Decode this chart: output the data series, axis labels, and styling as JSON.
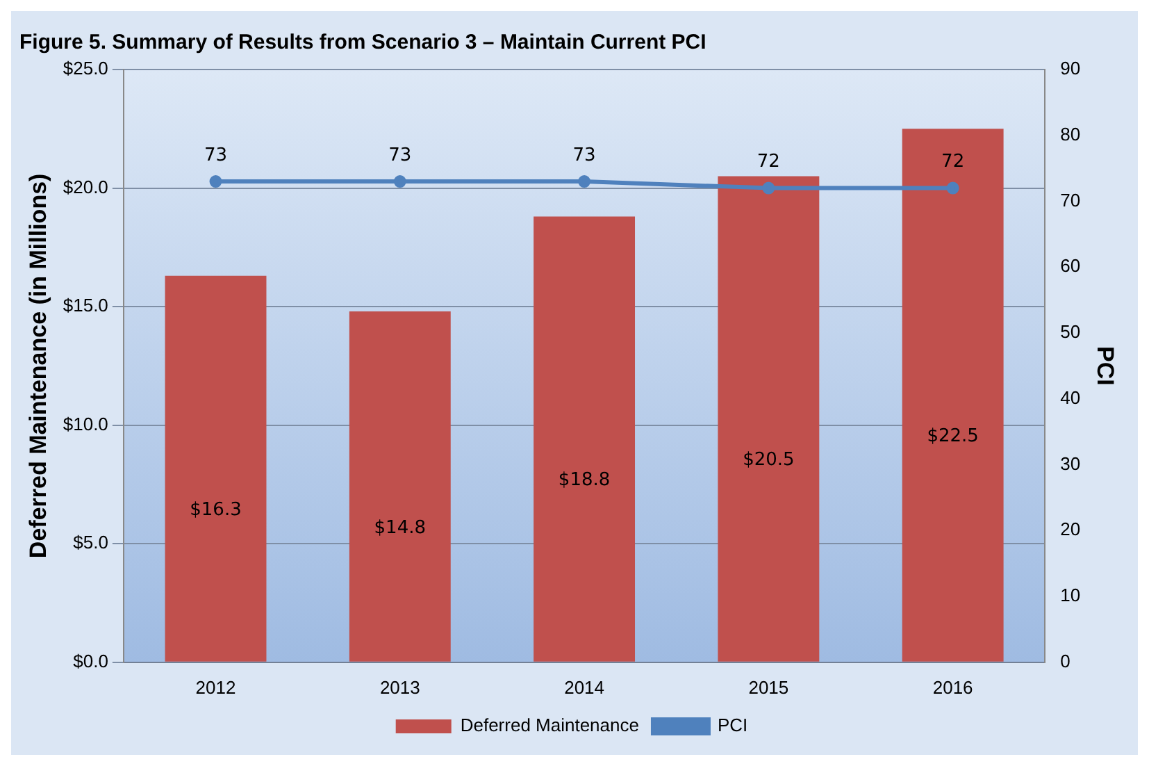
{
  "chart_data": {
    "type": "bar",
    "title": "Figure 5. Summary of Results from Scenario 3 – Maintain Current PCI",
    "categories": [
      "2012",
      "2013",
      "2014",
      "2015",
      "2016"
    ],
    "series": [
      {
        "name": "Deferred Maintenance",
        "color": "#c0504d",
        "values": [
          16.3,
          14.8,
          18.8,
          20.5,
          22.5
        ],
        "value_labels": [
          "$16.3",
          "$14.8",
          "$18.8",
          "$20.5",
          "$22.5"
        ]
      },
      {
        "name": "PCI",
        "type": "line",
        "axis": "y2",
        "color": "#4f81bd",
        "values": [
          73,
          73,
          73,
          72,
          72
        ],
        "value_labels": [
          "73",
          "73",
          "73",
          "72",
          "72"
        ]
      }
    ],
    "ylabel": "Deferred Maintenance (in Millions)",
    "y2label": "PCI",
    "ylim": [
      0,
      25
    ],
    "yticks": [
      {
        "value": 0,
        "label": "$0.0"
      },
      {
        "value": 5,
        "label": "$5.0"
      },
      {
        "value": 10,
        "label": "$10.0"
      },
      {
        "value": 15,
        "label": "$15.0"
      },
      {
        "value": 20,
        "label": "$20.0"
      },
      {
        "value": 25,
        "label": "$25.0"
      }
    ],
    "y2lim": [
      0,
      90
    ],
    "y2ticks": [
      0,
      10,
      20,
      30,
      40,
      50,
      60,
      70,
      80,
      90
    ],
    "grid": "y",
    "legend": "bottom",
    "marker": "circle"
  }
}
